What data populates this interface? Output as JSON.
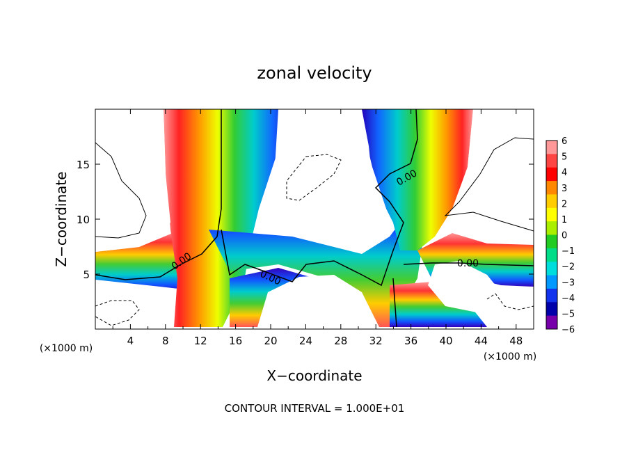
{
  "chart_data": {
    "type": "heatmap",
    "title": "zonal velocity",
    "xlabel": "X−coordinate",
    "ylabel": "Z−coordinate",
    "x_unit_left": "(×1000 m)",
    "x_unit_right": "(×1000 m)",
    "xlim": [
      0,
      50
    ],
    "ylim": [
      0,
      20
    ],
    "x_ticks": [
      "4",
      "8",
      "12",
      "16",
      "20",
      "24",
      "28",
      "32",
      "36",
      "40",
      "44",
      "48"
    ],
    "x_tick_values": [
      4,
      8,
      12,
      16,
      20,
      24,
      28,
      32,
      36,
      40,
      44,
      48
    ],
    "y_ticks": [
      "5",
      "10",
      "15"
    ],
    "y_tick_values": [
      5,
      10,
      15
    ],
    "colorbar": {
      "labels": [
        "6",
        "5",
        "4",
        "3",
        "2",
        "1",
        "0",
        "−1",
        "−2",
        "−3",
        "−4",
        "−5",
        "−6"
      ],
      "values": [
        6,
        5,
        4,
        3,
        2,
        1,
        0,
        -1,
        -2,
        -3,
        -4,
        -5,
        -6
      ],
      "colors": [
        "#ff9999",
        "#ff4444",
        "#ff0000",
        "#ff8800",
        "#ffcc00",
        "#ffff00",
        "#aaee00",
        "#22cc22",
        "#00dd88",
        "#00dddd",
        "#0099ff",
        "#1133ee",
        "#0000aa",
        "#7700aa"
      ]
    },
    "contour_labels": [
      "0.00",
      "0.00",
      "0.00",
      "0.00"
    ],
    "contour_label_positions": [
      {
        "x": 9.8,
        "z": 6.2
      },
      {
        "x": 20.0,
        "z": 4.7
      },
      {
        "x": 35.5,
        "z": 13.8
      },
      {
        "x": 42.5,
        "z": 6.0
      }
    ],
    "note": "CONTOUR INTERVAL = 1.000E+01"
  }
}
